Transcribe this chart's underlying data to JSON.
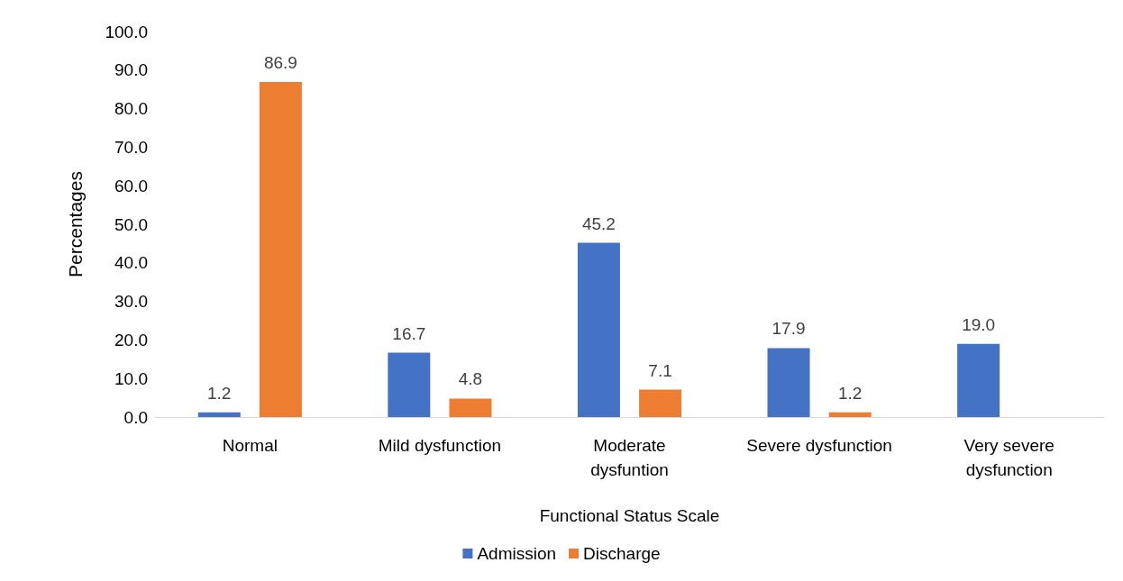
{
  "chart_data": {
    "type": "bar",
    "xlabel": "Functional Status Scale",
    "ylabel": "Percentages",
    "categories": [
      "Normal",
      "Mild dysfunction",
      "Moderate\ndysfuntion",
      "Severe dysfunction",
      "Very severe\ndysfunction"
    ],
    "series": [
      {
        "name": "Admission",
        "color": "#4472c4",
        "values": [
          1.2,
          16.7,
          45.2,
          17.9,
          19.0
        ],
        "value_labels": [
          "1.2",
          "16.7",
          "45.2",
          "17.9",
          "19.0"
        ]
      },
      {
        "name": "Discharge",
        "color": "#ed7d31",
        "values": [
          86.9,
          4.8,
          7.1,
          1.2,
          null
        ],
        "value_labels": [
          "86.9",
          "4.8",
          "7.1",
          "1.2",
          null
        ]
      }
    ],
    "ylim": [
      0,
      100
    ],
    "yticks": [
      {
        "value": 0,
        "label": "0.0"
      },
      {
        "value": 10,
        "label": "10.0"
      },
      {
        "value": 20,
        "label": "20.0"
      },
      {
        "value": 30,
        "label": "30.0"
      },
      {
        "value": 40,
        "label": "40.0"
      },
      {
        "value": 50,
        "label": "50.0"
      },
      {
        "value": 60,
        "label": "60.0"
      },
      {
        "value": 70,
        "label": "70.0"
      },
      {
        "value": 80,
        "label": "80.0"
      },
      {
        "value": 90,
        "label": "90.0"
      },
      {
        "value": 100,
        "label": "100.0"
      }
    ],
    "grid": false,
    "legend": "bottom"
  }
}
